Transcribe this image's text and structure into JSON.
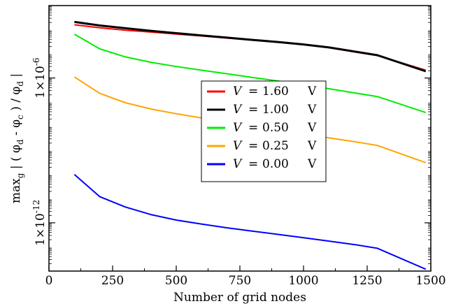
{
  "chart_data": {
    "type": "line",
    "xlabel": "Number of grid nodes",
    "ylabel": "max_g | ( φ_d - φ_c ) / φ_d |",
    "ylabel_parts": {
      "prefix": "max",
      "sub_g": "g",
      "body": " | ( φ",
      "sub_d1": "d",
      "mid": " - φ",
      "sub_c": "c",
      "mid2": " ) / φ",
      "sub_d2": "d",
      "suffix": " |"
    },
    "xlim": [
      0,
      1500
    ],
    "x_ticks": [
      0,
      250,
      500,
      750,
      1000,
      1250,
      1500
    ],
    "x_tick_labels": [
      "0",
      "250",
      "500",
      "750",
      "1000",
      "1250",
      "1500"
    ],
    "y_scale": "log",
    "ylim": [
      1e-14,
      0.001
    ],
    "y_major_ticks": [
      {
        "value": 1e-06,
        "base": "1×10",
        "exp": "-6"
      },
      {
        "value": 1e-12,
        "base": "1×10",
        "exp": "-12"
      }
    ],
    "grid": false,
    "legend": {
      "placement": "center",
      "entries": [
        {
          "var": "V",
          "eq": "=",
          "value": "1.60",
          "unit": "V",
          "color": "#ff0000"
        },
        {
          "var": "V",
          "eq": "=",
          "value": "1.00",
          "unit": "V",
          "color": "#000000"
        },
        {
          "var": "V",
          "eq": "=",
          "value": "0.50",
          "unit": "V",
          "color": "#00ee00"
        },
        {
          "var": "V",
          "eq": "=",
          "value": "0.25",
          "unit": "V",
          "color": "#ffa500"
        },
        {
          "var": "V",
          "eq": "=",
          "value": "0.00",
          "unit": "V",
          "color": "#0000ff"
        }
      ]
    },
    "x": [
      100,
      200,
      300,
      400,
      500,
      600,
      700,
      800,
      900,
      1000,
      1100,
      1200,
      1290,
      1480
    ],
    "series": [
      {
        "color": "#ff0000",
        "width": 2,
        "values": [
          0.00016,
          0.00012,
          9.5e-05,
          8e-05,
          6.6e-05,
          5.5e-05,
          4.5e-05,
          3.7e-05,
          3e-05,
          2.4e-05,
          1.8e-05,
          1.2e-05,
          8.5e-06,
          2.1e-06
        ]
      },
      {
        "color": "#000000",
        "width": 3,
        "values": [
          0.00021,
          0.00015,
          0.000115,
          9e-05,
          7.2e-05,
          5.8e-05,
          4.7e-05,
          3.8e-05,
          3.1e-05,
          2.45e-05,
          1.85e-05,
          1.25e-05,
          8.8e-06,
          1.9e-06
        ]
      },
      {
        "color": "#00ee00",
        "width": 2,
        "values": [
          6.5e-05,
          1.6e-05,
          7.5e-06,
          4.5e-06,
          3e-06,
          2.1e-06,
          1.5e-06,
          1.05e-06,
          7.5e-07,
          5.2e-07,
          3.6e-07,
          2.4e-07,
          1.7e-07,
          3.7e-08
        ]
      },
      {
        "color": "#ffa500",
        "width": 2,
        "values": [
          1.1e-06,
          2.3e-07,
          9.5e-08,
          5.2e-08,
          3.3e-08,
          2.2e-08,
          1.5e-08,
          1e-08,
          7e-09,
          4.8e-09,
          3.3e-09,
          2.3e-09,
          1.6e-09,
          3.1e-10
        ]
      },
      {
        "color": "#0000ff",
        "width": 2,
        "values": [
          1e-10,
          1.2e-11,
          4.5e-12,
          2.2e-12,
          1.3e-12,
          8.8e-13,
          6.2e-13,
          4.5e-13,
          3.3e-13,
          2.4e-13,
          1.75e-13,
          1.25e-13,
          8.8e-14,
          1.2e-14
        ]
      }
    ]
  }
}
